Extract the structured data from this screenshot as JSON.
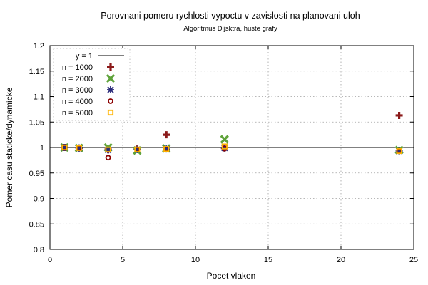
{
  "chart_data": {
    "type": "scatter",
    "title": "Porovnani pomeru rychlosti vypoctu v zavislosti na planovani uloh",
    "subtitle": "Algoritmus Dijsktra, huste grafy",
    "xlabel": "Pocet vlaken",
    "ylabel": "Pomer casu staticke/dynamicke",
    "xlim": [
      0,
      25
    ],
    "ylim": [
      0.8,
      1.2
    ],
    "xticks": [
      0,
      5,
      10,
      15,
      20,
      25
    ],
    "yticks": [
      0.8,
      0.85,
      0.9,
      0.95,
      1,
      1.05,
      1.1,
      1.15,
      1.2
    ],
    "xtick_labels": [
      "0",
      "5",
      "10",
      "15",
      "20",
      "25"
    ],
    "ytick_labels": [
      "0.8",
      "0.85",
      "0.9",
      "0.95",
      "1",
      "1.05",
      "1.1",
      "1.15",
      "1.2"
    ],
    "grid": true,
    "legend_position": "top-left",
    "reference_line": {
      "name": "y = 1",
      "y": 1,
      "color": "#000000"
    },
    "series": [
      {
        "name": "n = 1000",
        "marker": "plus",
        "color": "#8b1a1a",
        "points": [
          [
            1,
            1.0
          ],
          [
            2,
            0.999
          ],
          [
            4,
            0.996
          ],
          [
            6,
            0.997
          ],
          [
            8,
            1.025
          ],
          [
            12,
            0.999
          ],
          [
            24,
            1.063
          ]
        ]
      },
      {
        "name": "n = 2000",
        "marker": "cross",
        "color": "#5fa33a",
        "points": [
          [
            1,
            1.0
          ],
          [
            2,
            0.999
          ],
          [
            4,
            1.0
          ],
          [
            6,
            0.994
          ],
          [
            8,
            0.998
          ],
          [
            12,
            1.016
          ],
          [
            24,
            0.995
          ]
        ]
      },
      {
        "name": "n = 3000",
        "marker": "star",
        "color": "#2a2a7a",
        "points": [
          [
            1,
            1.0
          ],
          [
            2,
            0.999
          ],
          [
            4,
            0.995
          ],
          [
            6,
            0.996
          ],
          [
            8,
            0.997
          ],
          [
            12,
            0.999
          ],
          [
            24,
            0.993
          ]
        ]
      },
      {
        "name": "n = 4000",
        "marker": "circle",
        "color": "#8b0000",
        "points": [
          [
            1,
            1.0
          ],
          [
            2,
            0.999
          ],
          [
            4,
            0.98
          ],
          [
            6,
            0.996
          ],
          [
            8,
            0.997
          ],
          [
            12,
            0.998
          ],
          [
            24,
            0.993
          ]
        ]
      },
      {
        "name": "n = 5000",
        "marker": "square",
        "color": "#ffb300",
        "points": [
          [
            1,
            1.0
          ],
          [
            2,
            0.999
          ],
          [
            4,
            0.996
          ],
          [
            6,
            0.996
          ],
          [
            8,
            0.997
          ],
          [
            12,
            1.002
          ],
          [
            24,
            0.993
          ]
        ]
      }
    ]
  }
}
